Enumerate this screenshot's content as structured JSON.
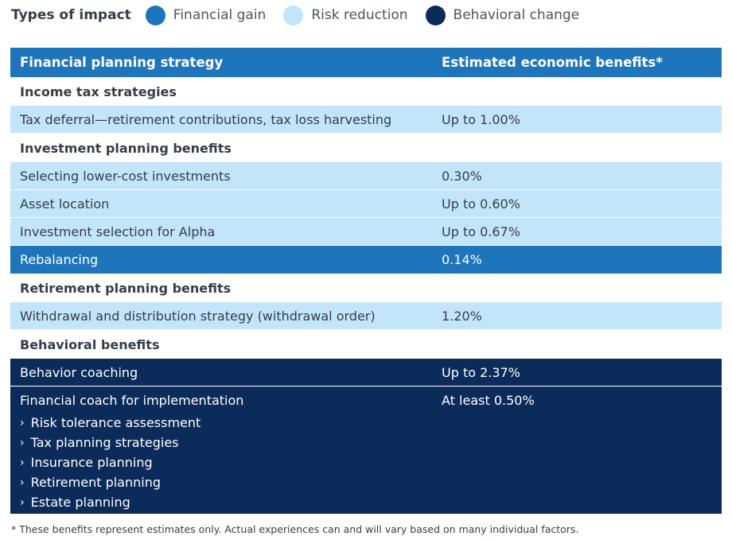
{
  "legend": {
    "title": "Types of impact",
    "items": [
      {
        "label": "Financial gain",
        "color": "#1f75bb"
      },
      {
        "label": "Risk reduction",
        "color": "#c2e5f9"
      },
      {
        "label": "Behavioral change",
        "color": "#0b2b5a"
      }
    ]
  },
  "table": {
    "headers": [
      "Financial planning strategy",
      "Estimated economic benefits*"
    ],
    "sections": {
      "income_tax": "Income tax strategies",
      "investment": "Investment planning benefits",
      "retirement": "Retirement planning benefits",
      "behavioral": "Behavioral benefits"
    },
    "rows": {
      "tax_deferral": {
        "strategy": "Tax deferral—retirement contributions, tax loss harvesting",
        "benefit": "Up to 1.00%"
      },
      "lower_cost": {
        "strategy": "Selecting lower-cost investments",
        "benefit": "0.30%"
      },
      "asset_location": {
        "strategy": "Asset location",
        "benefit": "Up to 0.60%"
      },
      "alpha": {
        "strategy": "Investment selection for Alpha",
        "benefit": "Up to 0.67%"
      },
      "rebalancing": {
        "strategy": "Rebalancing",
        "benefit": "0.14%"
      },
      "withdrawal": {
        "strategy": "Withdrawal and distribution strategy (withdrawal order)",
        "benefit": "1.20%"
      },
      "behavior_coaching": {
        "strategy": "Behavior coaching",
        "benefit": "Up to 2.37%"
      },
      "financial_coach": {
        "strategy": "Financial coach for implementation",
        "benefit": "At least 0.50%",
        "subitems": [
          "Risk tolerance assessment",
          "Tax planning strategies",
          "Insurance planning",
          "Retirement planning",
          "Estate planning"
        ]
      }
    }
  },
  "footnote": "* These benefits represent estimates only. Actual experiences can and will vary based on many individual factors."
}
